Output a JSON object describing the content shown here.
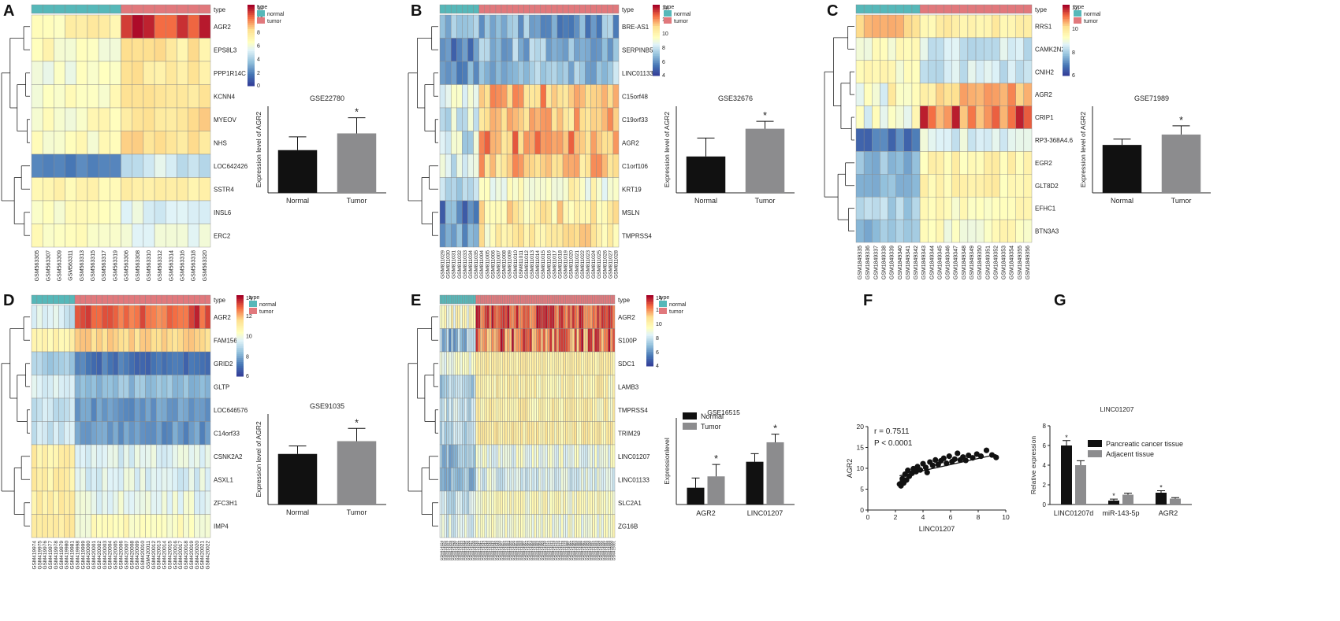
{
  "panels": [
    {
      "letter": "A",
      "kind": "heatmap",
      "colorbar_ticks": [
        0,
        2,
        4,
        6,
        8,
        10,
        12
      ],
      "legend_title": "type",
      "legend_items": [
        "normal",
        "tumor"
      ],
      "type_label": "type",
      "rows": [
        "AGR2",
        "EPS8L3",
        "PPP1R14C",
        "KCNN4",
        "MYEOV",
        "NHS",
        "LOC642426",
        "SSTR4",
        "INSL6",
        "ERC2"
      ],
      "samples": [
        "GSM563305",
        "GSM563307",
        "GSM563309",
        "GSM563311",
        "GSM563313",
        "GSM563315",
        "GSM563317",
        "GSM563319",
        "GSM563306",
        "GSM563308",
        "GSM563310",
        "GSM563312",
        "GSM563314",
        "GSM563316",
        "GSM563318",
        "GSM563320"
      ],
      "n_normal": 8
    },
    {
      "letter": "B",
      "kind": "heatmap",
      "colorbar_ticks": [
        4,
        6,
        8,
        10,
        12,
        14
      ],
      "legend_title": "type",
      "legend_items": [
        "normal",
        "tumor"
      ],
      "type_label": "type",
      "rows": [
        "BRE-AS1",
        "SERPINB5",
        "LINC01133",
        "C15orf48",
        "C19orf33",
        "AGR2",
        "C1orf106",
        "KRT19",
        "MSLN",
        "TMPRSS4"
      ],
      "samples": [
        "GSM811029",
        "GSM811030",
        "GSM811031",
        "GSM811032",
        "GSM811033",
        "GSM811034",
        "GSM811035",
        "GSM811004",
        "GSM811005",
        "GSM811006",
        "GSM811007",
        "GSM811008",
        "GSM811009",
        "GSM811010",
        "GSM811011",
        "GSM811012",
        "GSM811013",
        "GSM811014",
        "GSM811015",
        "GSM811016",
        "GSM811017",
        "GSM811018",
        "GSM811019",
        "GSM811020",
        "GSM811021",
        "GSM811022",
        "GSM811023",
        "GSM811024",
        "GSM811025",
        "GSM811026",
        "GSM811027",
        "GSM811028"
      ],
      "n_normal": 7
    },
    {
      "letter": "C",
      "kind": "heatmap",
      "colorbar_ticks": [
        6,
        8,
        10,
        12
      ],
      "legend_title": "type",
      "legend_items": [
        "normal",
        "tumor"
      ],
      "type_label": "type",
      "rows": [
        "RRS1",
        "CAMK2N2",
        "CNIH2",
        "AGR2",
        "CRIP1",
        "RP3-368A4.6",
        "EGR2",
        "GLT8D2",
        "EFHC1",
        "BTN3A3"
      ],
      "samples": [
        "GSM1849335",
        "GSM1849336",
        "GSM1849337",
        "GSM1849338",
        "GSM1849339",
        "GSM1849340",
        "GSM1849341",
        "GSM1849342",
        "GSM1849343",
        "GSM1849344",
        "GSM1849345",
        "GSM1849346",
        "GSM1849347",
        "GSM1849348",
        "GSM1849349",
        "GSM1849350",
        "GSM1849351",
        "GSM1849352",
        "GSM1849353",
        "GSM1849354",
        "GSM1849355",
        "GSM1849356"
      ],
      "n_normal": 8
    },
    {
      "letter": "D",
      "kind": "heatmap",
      "colorbar_ticks": [
        6,
        8,
        10,
        12,
        14
      ],
      "legend_title": "type",
      "legend_items": [
        "normal",
        "tumor"
      ],
      "type_label": "type",
      "rows": [
        "AGR2",
        "FAM156A",
        "GRID2",
        "GLTP",
        "LOC646576",
        "C14orf33",
        "CSNK2A2",
        "ASXL1",
        "ZFC3H1",
        "IMP4"
      ],
      "samples": [
        "GSM419974",
        "GSM419975",
        "GSM419976",
        "GSM419977",
        "GSM419978",
        "GSM419979",
        "GSM419980",
        "GSM419981",
        "GSM419998",
        "GSM419999",
        "GSM420000",
        "GSM420001",
        "GSM420002",
        "GSM420003",
        "GSM420004",
        "GSM420005",
        "GSM420006",
        "GSM420007",
        "GSM420008",
        "GSM420009",
        "GSM420010",
        "GSM420011",
        "GSM420012",
        "GSM420013",
        "GSM420014",
        "GSM420015",
        "GSM420016",
        "GSM420017",
        "GSM420018",
        "GSM420019",
        "GSM420020",
        "GSM420021",
        "GSM420022"
      ],
      "n_normal": 8
    },
    {
      "letter": "E",
      "kind": "heatmap",
      "colorbar_ticks": [
        4,
        6,
        8,
        10,
        12,
        14
      ],
      "legend_title": "type",
      "legend_items": [
        "normal",
        "tumor"
      ],
      "type_label": "type",
      "rows": [
        "AGR2",
        "S100P",
        "SDC1",
        "LAMB3",
        "TMPRSS4",
        "TRIM29",
        "LINC01207",
        "LINC01133",
        "SLC2A1",
        "ZG16B"
      ],
      "samples": [
        "GSM414924",
        "GSM414925",
        "GSM414926",
        "GSM414927",
        "GSM414928",
        "GSM414929",
        "GSM414930",
        "GSM414931",
        "GSM414932",
        "GSM414933",
        "GSM414934",
        "GSM414935",
        "GSM414936",
        "GSM414937",
        "GSM414938",
        "GSM414939",
        "GSM414940",
        "GSM414941",
        "GSM414942",
        "GSM414943",
        "GSM414944",
        "GSM414945",
        "GSM414946",
        "GSM414947",
        "GSM414948",
        "GSM414949",
        "GSM414950",
        "GSM414951",
        "GSM414952",
        "GSM414953",
        "GSM414954",
        "GSM414955",
        "GSM414956",
        "GSM414957",
        "GSM414958",
        "GSM414959",
        "GSM414960",
        "GSM414961",
        "GSM414962",
        "GSM414963",
        "GSM414964",
        "GSM414965",
        "GSM414966",
        "GSM414967",
        "GSM414968",
        "GSM414969",
        "GSM414970",
        "GSM414971",
        "GSM414972",
        "GSM414973",
        "GSM414974",
        "GSM414975",
        "GSM414976",
        "GSM414977",
        "GSM414978",
        "GSM414979",
        "GSM414980",
        "GSM414981",
        "GSM414982",
        "GSM414983",
        "GSM414984",
        "GSM414985",
        "GSM414986",
        "GSM414987",
        "GSM414988",
        "GSM414989",
        "GSM414990",
        "GSM414991",
        "GSM414992",
        "GSM414993",
        "GSM414994",
        "GSM414995",
        "GSM414996",
        "GSM414997",
        "GSM414998",
        "GSM414999",
        "GSM415000",
        "GSM415001"
      ],
      "n_normal": 16
    },
    {
      "letter": "F",
      "kind": "scatter"
    },
    {
      "letter": "G",
      "kind": "groupedbar"
    }
  ],
  "chart_data": [
    {
      "panel": "A",
      "type": "bar",
      "title": "GSE22780",
      "categories": [
        "Normal",
        "Tumor"
      ],
      "values": [
        7.4,
        10.3
      ],
      "errors": [
        2.3,
        2.7
      ],
      "significance": [
        "",
        "*"
      ],
      "ylabel": "Expression level of AGR2",
      "ylim": [
        0,
        15
      ],
      "colors": [
        "#111111",
        "#8c8c8e"
      ],
      "ticks": []
    },
    {
      "panel": "B",
      "type": "bar",
      "title": "GSE32676",
      "categories": [
        "Normal",
        "Tumor"
      ],
      "values": [
        6.3,
        11.1
      ],
      "errors": [
        3.2,
        1.3
      ],
      "significance": [
        "",
        "*"
      ],
      "ylabel": "Expression level of AGR2",
      "ylim": [
        0,
        15
      ],
      "colors": [
        "#111111",
        "#8c8c8e"
      ],
      "ticks": []
    },
    {
      "panel": "C",
      "type": "bar",
      "title": "GSE71989",
      "categories": [
        "Normal",
        "Tumor"
      ],
      "values": [
        8.3,
        10.1
      ],
      "errors": [
        1.0,
        1.5
      ],
      "significance": [
        "",
        "*"
      ],
      "ylabel": "Expression level of AGR2",
      "ylim": [
        0,
        15
      ],
      "colors": [
        "#111111",
        "#8c8c8e"
      ],
      "ticks": []
    },
    {
      "panel": "D",
      "type": "bar",
      "title": "GSE91035",
      "categories": [
        "Normal",
        "Tumor"
      ],
      "values": [
        9.5,
        11.9
      ],
      "errors": [
        1.5,
        2.4
      ],
      "significance": [
        "",
        "*"
      ],
      "ylabel": "Expression level of AGR2",
      "ylim": [
        0,
        17
      ],
      "colors": [
        "#111111",
        "#8c8c8e"
      ],
      "ticks": []
    },
    {
      "panel": "E",
      "type": "bar",
      "title": "GSE16515",
      "categories": [
        "AGR2",
        "LINC01207"
      ],
      "series": [
        {
          "name": "Normal",
          "values": [
            3.1,
            7.9
          ],
          "errors": [
            1.8,
            1.5
          ],
          "significance": [
            "",
            ""
          ],
          "color": "#111111"
        },
        {
          "name": "Tumor",
          "values": [
            5.2,
            11.5
          ],
          "errors": [
            2.2,
            1.5
          ],
          "significance": [
            "*",
            "*"
          ],
          "color": "#8c8c8e"
        }
      ],
      "ylabel": "Expressionlevel",
      "ylim": [
        0,
        16
      ],
      "legend": "top-left",
      "ticks": []
    },
    {
      "panel": "F",
      "type": "scatter",
      "annotations": [
        "r = 0.7511",
        "P < 0.0001"
      ],
      "xlabel": "LINC01207",
      "ylabel": "AGR2",
      "xlim": [
        0,
        10
      ],
      "ylim": [
        0,
        20
      ],
      "xticks": [
        0,
        2,
        4,
        6,
        8,
        10
      ],
      "yticks": [
        0,
        5,
        10,
        15,
        20
      ],
      "fit_line": [
        [
          2.3,
          8.2
        ],
        [
          9.3,
          13.3
        ]
      ],
      "points": [
        [
          2.3,
          6.2
        ],
        [
          2.4,
          5.8
        ],
        [
          2.5,
          6.8
        ],
        [
          2.5,
          7.5
        ],
        [
          2.6,
          6.5
        ],
        [
          2.7,
          8.6
        ],
        [
          2.8,
          7.2
        ],
        [
          2.9,
          9.5
        ],
        [
          3.0,
          8.1
        ],
        [
          3.2,
          8.8
        ],
        [
          3.3,
          9.9
        ],
        [
          3.5,
          9.2
        ],
        [
          3.6,
          10.4
        ],
        [
          3.8,
          9.6
        ],
        [
          4.0,
          11.1
        ],
        [
          4.2,
          10.2
        ],
        [
          4.3,
          9.0
        ],
        [
          4.5,
          11.5
        ],
        [
          4.7,
          10.7
        ],
        [
          4.9,
          12.0
        ],
        [
          5.1,
          10.9
        ],
        [
          5.3,
          11.8
        ],
        [
          5.5,
          12.4
        ],
        [
          5.7,
          11.2
        ],
        [
          5.9,
          12.9
        ],
        [
          6.1,
          11.6
        ],
        [
          6.3,
          12.2
        ],
        [
          6.5,
          13.6
        ],
        [
          6.7,
          12.0
        ],
        [
          6.9,
          12.7
        ],
        [
          7.1,
          11.9
        ],
        [
          7.3,
          13.1
        ],
        [
          7.6,
          12.5
        ],
        [
          7.9,
          13.4
        ],
        [
          8.2,
          12.9
        ],
        [
          8.6,
          14.3
        ],
        [
          9.0,
          13.2
        ],
        [
          9.3,
          12.6
        ]
      ]
    },
    {
      "panel": "G",
      "type": "bar",
      "title": "LINC01207",
      "categories": [
        "LINC01207d",
        "miR-143-5p",
        "AGR2"
      ],
      "series": [
        {
          "name": "Pancreatic cancer tissue",
          "values": [
            6.0,
            0.4,
            1.2
          ],
          "errors": [
            0.5,
            0.15,
            0.2
          ],
          "significance": [
            "*",
            "*",
            "*"
          ],
          "color": "#111111"
        },
        {
          "name": "Adjacent tissue",
          "values": [
            4.0,
            1.0,
            0.6
          ],
          "errors": [
            0.45,
            0.15,
            0.1
          ],
          "significance": [
            "",
            "",
            ""
          ],
          "color": "#8c8c8e"
        }
      ],
      "ylabel": "Relative expression",
      "ylim": [
        0,
        8
      ],
      "yticks": [
        0,
        2,
        4,
        6,
        8
      ],
      "legend": "top-right"
    }
  ]
}
